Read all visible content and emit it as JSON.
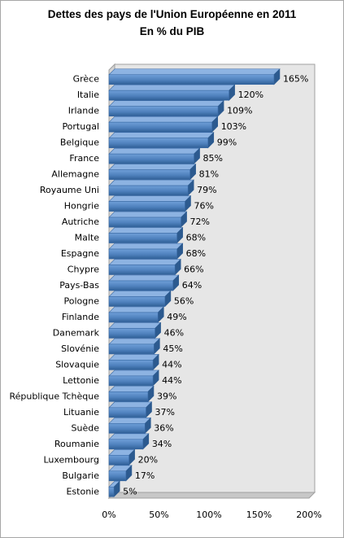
{
  "chart_data": {
    "type": "bar",
    "orientation": "horizontal",
    "title": "Dettes des pays de l'Union Européenne en 2011",
    "subtitle": "En % du PIB",
    "categories": [
      "Grèce",
      "Italie",
      "Irlande",
      "Portugal",
      "Belgique",
      "France",
      "Allemagne",
      "Royaume Uni",
      "Hongrie",
      "Autriche",
      "Malte",
      "Espagne",
      "Chypre",
      "Pays-Bas",
      "Pologne",
      "Finlande",
      "Danemark",
      "Slovénie",
      "Slovaquie",
      "Lettonie",
      "République Tchèque",
      "Lituanie",
      "Suède",
      "Roumanie",
      "Luxembourg",
      "Bulgarie",
      "Estonie"
    ],
    "values": [
      165,
      120,
      109,
      103,
      99,
      85,
      81,
      79,
      76,
      72,
      68,
      68,
      66,
      64,
      56,
      49,
      46,
      45,
      44,
      44,
      39,
      37,
      36,
      34,
      20,
      17,
      5
    ],
    "value_labels": [
      "165%",
      "120%",
      "109%",
      "103%",
      "99%",
      "85%",
      "81%",
      "79%",
      "76%",
      "72%",
      "68%",
      "68%",
      "66%",
      "64%",
      "56%",
      "49%",
      "46%",
      "45%",
      "44%",
      "44%",
      "39%",
      "37%",
      "36%",
      "34%",
      "20%",
      "17%",
      "5%"
    ],
    "xlim": [
      0,
      200
    ],
    "xticks": [
      0,
      50,
      100,
      150,
      200
    ],
    "xtick_labels": [
      "0%",
      "50%",
      "100%",
      "150%",
      "200%"
    ],
    "grid": false,
    "legend": "none",
    "style": "3d",
    "bar_color": "#4f81bd",
    "wall_color": "#e6e6e6"
  }
}
